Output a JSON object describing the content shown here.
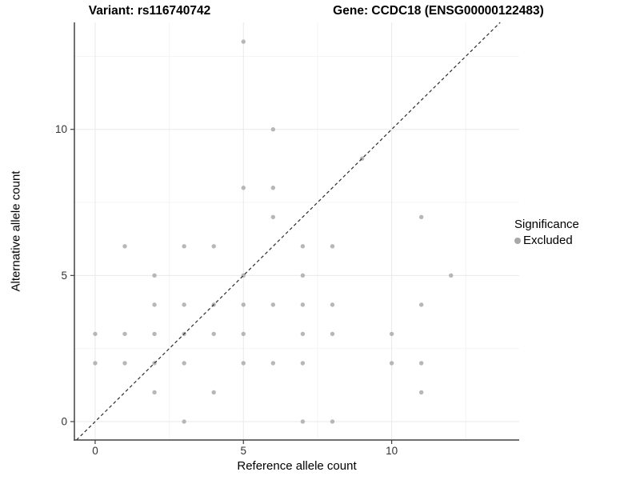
{
  "titles": {
    "variant": "Variant: rs116740742",
    "gene": "Gene: CCDC18 (ENSG00000122483)"
  },
  "chart_data": {
    "type": "scatter",
    "xlabel": "Reference allele count",
    "ylabel": "Alternative allele count",
    "xlim": [
      -0.7,
      14.3
    ],
    "ylim": [
      -0.63,
      13.66
    ],
    "x_ticks": [
      0,
      5,
      10
    ],
    "y_ticks": [
      0,
      5,
      10
    ],
    "x_minor_ticks": [
      2.5,
      7.5,
      12.5
    ],
    "y_minor_ticks": [
      2.5,
      7.5,
      12.5
    ],
    "grid": true,
    "identity_line": {
      "style": "dashed",
      "from": "y equals x diagonal"
    },
    "legend": {
      "position": "right",
      "title": "Significance",
      "entries": [
        {
          "label": "Excluded"
        }
      ]
    },
    "series": [
      {
        "name": "Excluded",
        "points": [
          [
            0,
            2
          ],
          [
            0,
            3
          ],
          [
            1,
            2
          ],
          [
            1,
            3
          ],
          [
            1,
            6
          ],
          [
            2,
            1
          ],
          [
            2,
            2
          ],
          [
            2,
            3
          ],
          [
            2,
            4
          ],
          [
            2,
            5
          ],
          [
            3,
            0
          ],
          [
            3,
            2
          ],
          [
            3,
            3
          ],
          [
            3,
            4
          ],
          [
            3,
            6
          ],
          [
            4,
            1
          ],
          [
            4,
            3
          ],
          [
            4,
            4
          ],
          [
            4,
            6
          ],
          [
            5,
            2
          ],
          [
            5,
            3
          ],
          [
            5,
            4
          ],
          [
            5,
            5
          ],
          [
            5,
            8
          ],
          [
            5,
            13
          ],
          [
            6,
            2
          ],
          [
            6,
            4
          ],
          [
            6,
            7
          ],
          [
            6,
            8
          ],
          [
            6,
            10
          ],
          [
            7,
            0
          ],
          [
            7,
            2
          ],
          [
            7,
            3
          ],
          [
            7,
            4
          ],
          [
            7,
            5
          ],
          [
            7,
            6
          ],
          [
            8,
            0
          ],
          [
            8,
            3
          ],
          [
            8,
            4
          ],
          [
            8,
            6
          ],
          [
            9,
            9
          ],
          [
            10,
            2
          ],
          [
            10,
            3
          ],
          [
            11,
            1
          ],
          [
            11,
            2
          ],
          [
            11,
            4
          ],
          [
            11,
            7
          ],
          [
            12,
            5
          ]
        ]
      }
    ]
  },
  "colors": {
    "point": "#b1b1b1",
    "legend_point": "#a8a8a8",
    "grid_major": "#e9e9e9",
    "grid_minor": "#f4f4f4",
    "axis": "#404040",
    "tick_label": "#333333",
    "identity_line": "#2b2b2b",
    "background": "#ffffff"
  }
}
